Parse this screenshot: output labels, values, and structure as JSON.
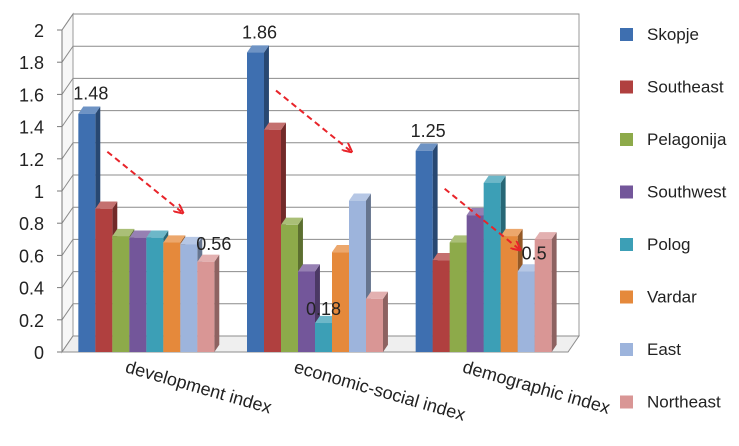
{
  "chart_data": {
    "type": "bar",
    "title": "",
    "xlabel": "",
    "ylabel": "",
    "ylim": [
      0,
      2
    ],
    "yticks": [
      "0",
      "0.2",
      "0.4",
      "0.6",
      "0.8",
      "1",
      "1.2",
      "1.4",
      "1.6",
      "1.8",
      "2"
    ],
    "grid": true,
    "legend_position": "right",
    "three_d": true,
    "categories": [
      "development index",
      "economic-social index",
      "demographic index"
    ],
    "series": [
      {
        "name": "Skopje",
        "color": "#3e6fb0",
        "values": [
          1.48,
          1.86,
          1.25
        ]
      },
      {
        "name": "Southeast",
        "color": "#b0403f",
        "values": [
          0.89,
          1.38,
          0.57
        ]
      },
      {
        "name": "Pelagonija",
        "color": "#8daa4a",
        "values": [
          0.72,
          0.79,
          0.68
        ]
      },
      {
        "name": "Southwest",
        "color": "#73569a",
        "values": [
          0.71,
          0.5,
          0.85
        ]
      },
      {
        "name": "Polog",
        "color": "#3c9fb6",
        "values": [
          0.71,
          0.18,
          1.05
        ]
      },
      {
        "name": "Vardar",
        "color": "#e5893b",
        "values": [
          0.68,
          0.62,
          0.72
        ]
      },
      {
        "name": "East",
        "color": "#9db4dc",
        "values": [
          0.67,
          0.94,
          0.5
        ]
      },
      {
        "name": "Northeast",
        "color": "#d99695",
        "values": [
          0.56,
          0.33,
          0.7
        ]
      }
    ],
    "data_labels": [
      {
        "text": "1.48",
        "category": 0,
        "series": 0
      },
      {
        "text": "0.56",
        "category": 0,
        "series": 7
      },
      {
        "text": "1.86",
        "category": 1,
        "series": 0
      },
      {
        "text": "0.18",
        "category": 1,
        "series": 4
      },
      {
        "text": "1.25",
        "category": 2,
        "series": 0
      },
      {
        "text": "0.5",
        "category": 2,
        "series": 6
      }
    ],
    "annotations": [
      {
        "type": "dashed-arrow",
        "color": "#e8242a",
        "category": 0
      },
      {
        "type": "dashed-arrow",
        "color": "#e8242a",
        "category": 1
      },
      {
        "type": "dashed-arrow",
        "color": "#e8242a",
        "category": 2
      }
    ]
  }
}
